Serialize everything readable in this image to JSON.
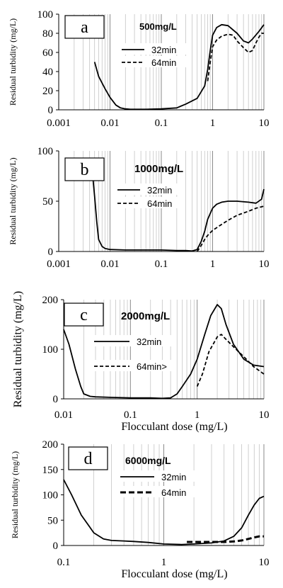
{
  "chart_data": [
    {
      "type": "line",
      "panel_label": "a",
      "title": "500mg/L",
      "ylabel": "Residual turbidity (mg/L)",
      "xlabel": "",
      "x_scale": "log",
      "xlim": [
        0.001,
        10
      ],
      "ylim": [
        0,
        100
      ],
      "x_ticks": [
        "0.001",
        "0.01",
        "0.1",
        "1",
        "10"
      ],
      "y_ticks": [
        "0",
        "20",
        "40",
        "60",
        "80",
        "100"
      ],
      "legend_position": "top-center",
      "series": [
        {
          "name": "32min",
          "dash": "solid",
          "x": [
            0.005,
            0.006,
            0.008,
            0.01,
            0.013,
            0.016,
            0.02,
            0.025,
            0.03,
            0.05,
            0.1,
            0.2,
            0.3,
            0.5,
            0.7,
            0.8,
            0.9,
            1.0,
            1.2,
            1.5,
            2.0,
            3.0,
            4.0,
            5.0,
            6.0,
            8.0,
            10.0
          ],
          "y": [
            50,
            35,
            22,
            13,
            5,
            2,
            1,
            0.5,
            0.5,
            0.5,
            1,
            2,
            6,
            12,
            25,
            42,
            62,
            78,
            86,
            89,
            88,
            80,
            72,
            70,
            74,
            82,
            89
          ]
        },
        {
          "name": "64min",
          "dash": "dashed",
          "x": [
            0.8,
            0.9,
            1.0,
            1.2,
            1.5,
            2.0,
            2.5,
            3.0,
            4.0,
            5.0,
            6.0,
            7.0,
            8.0,
            9.0,
            10.0
          ],
          "y": [
            30,
            50,
            66,
            73,
            77,
            79,
            78,
            72,
            65,
            60,
            62,
            70,
            76,
            80,
            80
          ]
        }
      ]
    },
    {
      "type": "line",
      "panel_label": "b",
      "title": "1000mg/L",
      "ylabel": "Residual turbidity (mg/L)",
      "xlabel": "",
      "x_scale": "log",
      "xlim": [
        0.001,
        10
      ],
      "ylim": [
        0,
        100
      ],
      "x_ticks": [
        "0.001",
        "0.01",
        "0.1",
        "1",
        "10"
      ],
      "y_ticks": [
        "0",
        "50",
        "100"
      ],
      "legend_position": "top-center",
      "series": [
        {
          "name": "32min",
          "dash": "solid",
          "x": [
            0.0045,
            0.005,
            0.0055,
            0.006,
            0.007,
            0.008,
            0.01,
            0.02,
            0.05,
            0.1,
            0.2,
            0.3,
            0.4,
            0.5,
            0.6,
            0.7,
            0.8,
            1.0,
            1.2,
            1.5,
            2.0,
            3.0,
            5.0,
            7.0,
            9.0,
            10.0
          ],
          "y": [
            80,
            55,
            30,
            12,
            5,
            3,
            2,
            1.5,
            1.5,
            1.5,
            1,
            1,
            0.5,
            2,
            10,
            20,
            32,
            43,
            47,
            49,
            50,
            50,
            49,
            48,
            52,
            62
          ]
        },
        {
          "name": "64min",
          "dash": "dashed",
          "x": [
            0.5,
            0.6,
            0.7,
            0.8,
            1.0,
            1.5,
            2.0,
            3.0,
            5.0,
            7.0,
            10.0
          ],
          "y": [
            0,
            6,
            12,
            16,
            21,
            27,
            31,
            36,
            40,
            43,
            45
          ]
        }
      ]
    },
    {
      "type": "line",
      "panel_label": "c",
      "title": "2000mg/L",
      "ylabel": "Residual turbidity (mg/L)",
      "xlabel": "Flocculant dose (mg/L)",
      "x_scale": "log",
      "xlim": [
        0.01,
        10
      ],
      "ylim": [
        0,
        200
      ],
      "x_ticks": [
        "0.01",
        "0.1",
        "1",
        "10"
      ],
      "y_ticks": [
        "0",
        "100",
        "200"
      ],
      "legend_position": "left-center",
      "series": [
        {
          "name": "32min",
          "dash": "solid",
          "x": [
            0.01,
            0.012,
            0.015,
            0.018,
            0.02,
            0.025,
            0.03,
            0.05,
            0.1,
            0.2,
            0.3,
            0.4,
            0.5,
            0.6,
            0.8,
            1.0,
            1.3,
            1.6,
            2.0,
            2.3,
            2.7,
            3.5,
            5.0,
            7.0,
            10.0
          ],
          "y": [
            140,
            110,
            60,
            25,
            10,
            5,
            4,
            3,
            2,
            2,
            1,
            2,
            10,
            25,
            50,
            80,
            130,
            168,
            190,
            182,
            150,
            110,
            80,
            68,
            65
          ]
        },
        {
          "name": "64min>",
          "dash": "dashed",
          "x": [
            1.0,
            1.2,
            1.5,
            2.0,
            2.3,
            2.7,
            3.5,
            5.0,
            7.0,
            10.0
          ],
          "y": [
            25,
            50,
            95,
            125,
            130,
            120,
            105,
            85,
            65,
            50
          ]
        }
      ]
    },
    {
      "type": "line",
      "panel_label": "d",
      "title": "6000mg/L",
      "ylabel": "Residual turbidity (mg/L)",
      "xlabel": "Flocculant dose (mg/L)",
      "x_scale": "log",
      "xlim": [
        0.1,
        10
      ],
      "ylim": [
        0,
        200
      ],
      "x_ticks": [
        "0.1",
        "1",
        "10"
      ],
      "y_ticks": [
        "0",
        "50",
        "100",
        "150",
        "200"
      ],
      "legend_position": "top-center",
      "series": [
        {
          "name": "32min",
          "dash": "solid",
          "x": [
            0.1,
            0.12,
            0.15,
            0.2,
            0.25,
            0.3,
            0.4,
            0.5,
            0.7,
            1.0,
            1.5,
            2.0,
            3.0,
            4.0,
            5.0,
            6.0,
            7.0,
            8.0,
            9.0,
            10.0
          ],
          "y": [
            130,
            100,
            60,
            25,
            13,
            10,
            9,
            8,
            6,
            3,
            2,
            3,
            5,
            9,
            18,
            35,
            60,
            80,
            93,
            97
          ]
        },
        {
          "name": "64min",
          "dash": "dashed",
          "x": [
            1.7,
            2.0,
            3.0,
            4.0,
            5.0,
            6.0,
            7.0,
            8.0,
            9.0,
            10.0
          ],
          "y": [
            7,
            7,
            7,
            7,
            8,
            10,
            13,
            16,
            18,
            18
          ]
        }
      ]
    }
  ]
}
